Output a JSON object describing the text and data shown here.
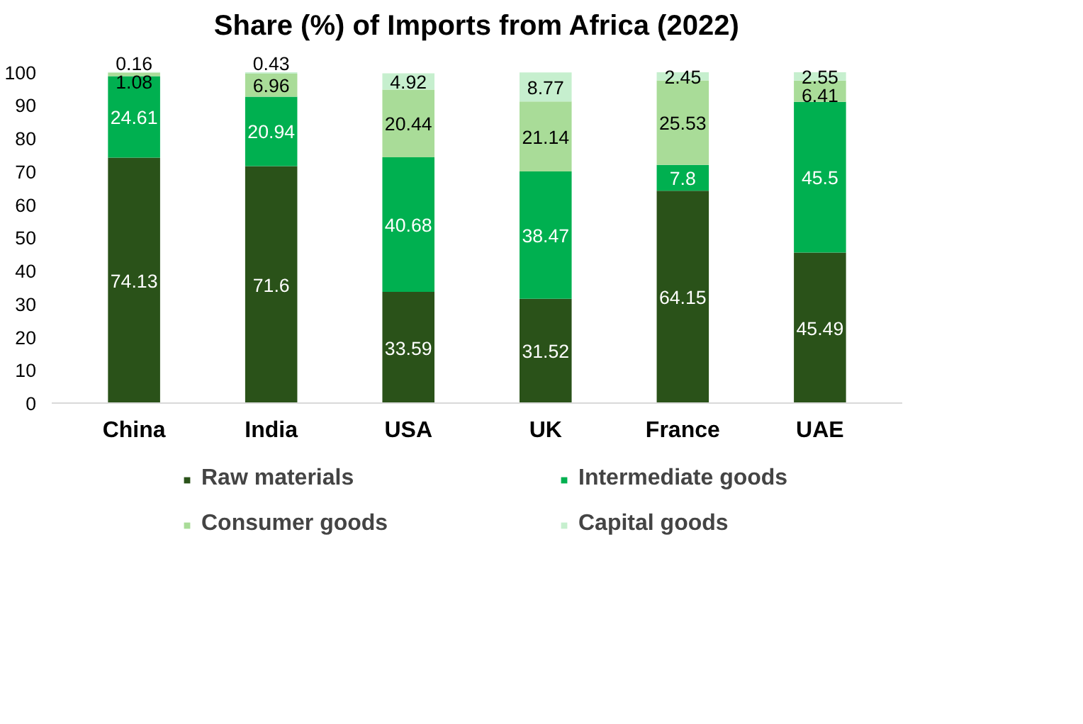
{
  "chart_data": {
    "type": "bar",
    "title": "Share (%) of Imports from Africa (2022)",
    "categories": [
      "China",
      "India",
      "USA",
      "UK",
      "France",
      "UAE"
    ],
    "stacked": true,
    "series": [
      {
        "name": "Raw materials",
        "color": "#2a5219",
        "values": [
          74.13,
          71.6,
          33.59,
          31.52,
          64.15,
          45.49
        ]
      },
      {
        "name": "Intermediate goods",
        "color": "#00b050",
        "values": [
          24.61,
          20.94,
          40.68,
          38.47,
          7.8,
          45.5
        ]
      },
      {
        "name": "Consumer goods",
        "color": "#a9dc98",
        "values": [
          1.08,
          6.96,
          20.44,
          21.14,
          25.53,
          6.41
        ]
      },
      {
        "name": "Capital goods",
        "color": "#c6efce",
        "values": [
          0.16,
          0.43,
          4.92,
          8.77,
          2.45,
          2.55
        ]
      }
    ],
    "ylim": [
      0,
      100
    ],
    "yticks": [
      0,
      10,
      20,
      30,
      40,
      50,
      60,
      70,
      80,
      90,
      100
    ],
    "grid": false,
    "legend": "bottom",
    "data_labels": true
  }
}
